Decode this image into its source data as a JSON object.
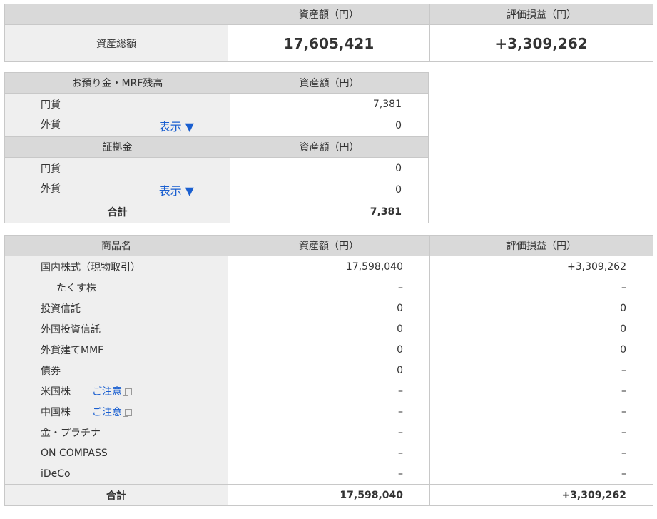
{
  "summary": {
    "header": "資産額（円）",
    "header_pl": "評価損益（円）",
    "label": "資産総額",
    "total": "17,605,421",
    "pl": "+3,309,262"
  },
  "deposit": {
    "header": "お預り金・MRF残高",
    "header_value": "資産額（円）",
    "rows": [
      {
        "label": "円貨",
        "value": "7,381"
      },
      {
        "label": "外貨",
        "link": "表示 ▼",
        "value": "0"
      }
    ]
  },
  "margin": {
    "header": "証拠金",
    "header_value": "資産額（円）",
    "rows": [
      {
        "label": "円貨",
        "value": "0"
      },
      {
        "label": "外貨",
        "link": "表示 ▼",
        "value": "0"
      }
    ],
    "total_label": "合計",
    "total": "7,381"
  },
  "products": {
    "headers": [
      "商品名",
      "資産額（円）",
      "評価損益（円）"
    ],
    "rows": [
      {
        "name": "国内株式（現物取引）",
        "value": "17,598,040",
        "pl": "+3,309,262"
      },
      {
        "name": "たくす株",
        "value": "–",
        "pl": "–",
        "indent": true
      },
      {
        "name": "投資信託",
        "value": "0",
        "pl": "0"
      },
      {
        "name": "外国投資信託",
        "value": "0",
        "pl": "0"
      },
      {
        "name": "外貨建てMMF",
        "value": "0",
        "pl": "0"
      },
      {
        "name": "債券",
        "value": "0",
        "pl": "–"
      },
      {
        "name": "米国株",
        "note": "ご注意",
        "value": "–",
        "pl": "–"
      },
      {
        "name": "中国株",
        "note": "ご注意",
        "value": "–",
        "pl": "–"
      },
      {
        "name": "金・プラチナ",
        "value": "–",
        "pl": "–"
      },
      {
        "name": "ON COMPASS",
        "value": "–",
        "pl": "–"
      },
      {
        "name": "iDeCo",
        "value": "–",
        "pl": "–"
      }
    ],
    "total_label": "合計",
    "total_value": "17,598,040",
    "total_pl": "+3,309,262"
  }
}
